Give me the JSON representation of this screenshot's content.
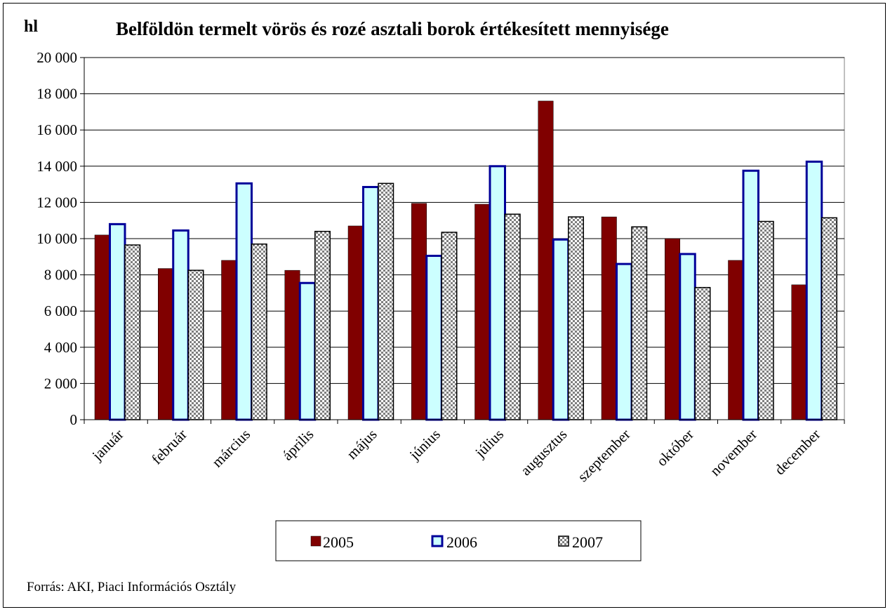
{
  "chart_data": {
    "type": "bar",
    "title": "Belföldön termelt vörös és rozé asztali borok értékesített mennyisége",
    "ylabel": "hl",
    "ylim": [
      0,
      20000
    ],
    "yticks": [
      0,
      2000,
      4000,
      6000,
      8000,
      10000,
      12000,
      14000,
      16000,
      18000,
      20000
    ],
    "ytick_labels": [
      "0",
      "2 000",
      "4 000",
      "6 000",
      "8 000",
      "10 000",
      "12 000",
      "14 000",
      "16 000",
      "18 000",
      "20 000"
    ],
    "grid": true,
    "legend_position": "bottom",
    "categories": [
      "január",
      "február",
      "március",
      "április",
      "május",
      "június",
      "július",
      "augusztus",
      "szeptember",
      "október",
      "november",
      "december"
    ],
    "series": [
      {
        "name": "2005",
        "color": "#800000",
        "values": [
          10200,
          8350,
          8800,
          8250,
          10700,
          11950,
          11900,
          17600,
          11200,
          10000,
          8800,
          7450
        ]
      },
      {
        "name": "2006",
        "color": "#ccffff",
        "border": "#000099",
        "values": [
          10800,
          10450,
          13050,
          7550,
          12850,
          9050,
          14000,
          9950,
          8600,
          9150,
          13750,
          14250
        ]
      },
      {
        "name": "2007",
        "color": "#c0c0c0",
        "pattern": "checker",
        "values": [
          9650,
          8250,
          9700,
          10400,
          13050,
          10350,
          11350,
          11200,
          10650,
          7300,
          10950,
          11150
        ]
      }
    ],
    "source_note": "Forrás: AKI, Piaci Információs Osztály"
  }
}
